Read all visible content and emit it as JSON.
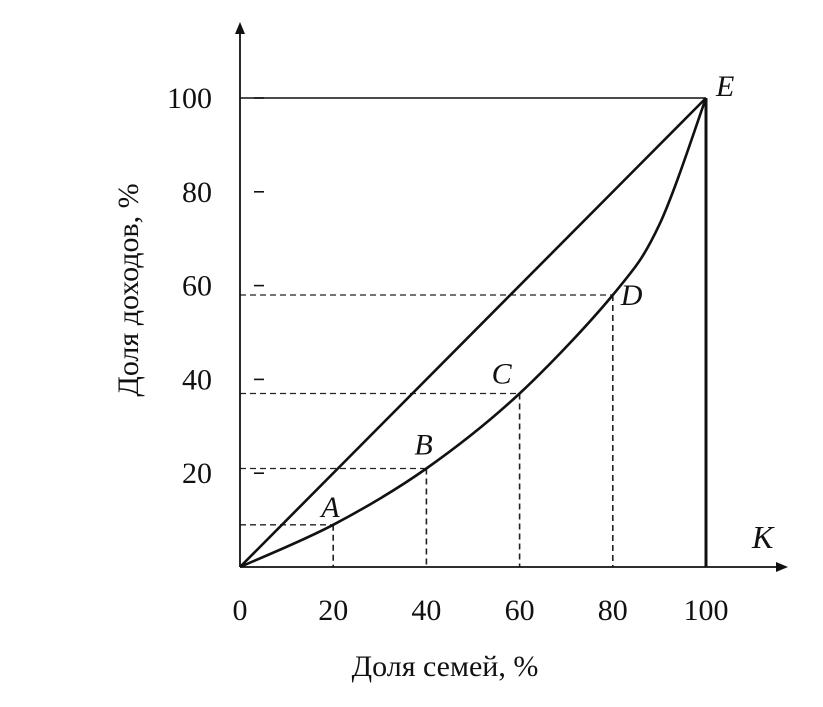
{
  "chart_data": {
    "type": "line",
    "xlabel": "Доля семей, %",
    "ylabel": "Доля доходов, %",
    "x_axis_letter": "K",
    "xlim": [
      0,
      100
    ],
    "ylim": [
      0,
      100
    ],
    "x_ticks": [
      0,
      20,
      40,
      60,
      80,
      100
    ],
    "y_ticks": [
      20,
      40,
      60,
      80,
      100
    ],
    "grid": false,
    "series": [
      {
        "values": [
          {
            "x": 0,
            "y": 0
          },
          {
            "x": 100,
            "y": 100
          }
        ]
      },
      {
        "values": [
          {
            "x": 0,
            "y": 0
          },
          {
            "x": 20,
            "y": 9
          },
          {
            "x": 40,
            "y": 21
          },
          {
            "x": 60,
            "y": 37
          },
          {
            "x": 80,
            "y": 58
          },
          {
            "x": 90,
            "y": 73
          },
          {
            "x": 100,
            "y": 100
          }
        ]
      }
    ],
    "points": [
      {
        "label": "A",
        "x": 20,
        "y": 9
      },
      {
        "label": "B",
        "x": 40,
        "y": 21
      },
      {
        "label": "C",
        "x": 60,
        "y": 37
      },
      {
        "label": "D",
        "x": 80,
        "y": 58
      },
      {
        "label": "E",
        "x": 100,
        "y": 100
      }
    ]
  }
}
